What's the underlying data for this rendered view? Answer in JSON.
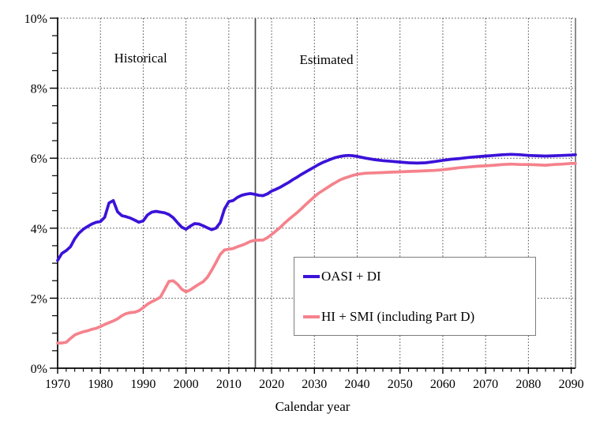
{
  "chart_data": {
    "type": "line",
    "title": "",
    "xlabel": "Calendar year",
    "ylabel": "",
    "xlim": [
      1970,
      2091
    ],
    "ylim": [
      0,
      10
    ],
    "x_major_ticks": [
      1970,
      1980,
      1990,
      2000,
      2010,
      2020,
      2030,
      2040,
      2050,
      2060,
      2070,
      2080,
      2090
    ],
    "x_minor_step": 2,
    "y_major_ticks": [
      0,
      2,
      4,
      6,
      8,
      10
    ],
    "y_minor_step": 0.5,
    "y_tick_suffix": "%",
    "grid": "dotted gridlines at every major tick, both axes",
    "legend_position": "lower right",
    "divider_year": 2016.2,
    "annotations": [
      {
        "text": "Historical",
        "year": 1989.4,
        "value": 8.85
      },
      {
        "text": "Estimated",
        "year": 2032.8,
        "value": 8.8
      }
    ],
    "series": [
      {
        "id": "oasi-di",
        "name": "OASI + DI",
        "color": "#3b12d9",
        "points": [
          [
            1970,
            3.08
          ],
          [
            1971,
            3.28
          ],
          [
            1972,
            3.36
          ],
          [
            1973,
            3.47
          ],
          [
            1974,
            3.7
          ],
          [
            1975,
            3.86
          ],
          [
            1976,
            3.97
          ],
          [
            1977,
            4.05
          ],
          [
            1978,
            4.12
          ],
          [
            1979,
            4.17
          ],
          [
            1980,
            4.19
          ],
          [
            1981,
            4.31
          ],
          [
            1982,
            4.72
          ],
          [
            1983,
            4.79
          ],
          [
            1984,
            4.47
          ],
          [
            1985,
            4.36
          ],
          [
            1986,
            4.33
          ],
          [
            1987,
            4.29
          ],
          [
            1988,
            4.23
          ],
          [
            1989,
            4.17
          ],
          [
            1990,
            4.21
          ],
          [
            1991,
            4.38
          ],
          [
            1992,
            4.46
          ],
          [
            1993,
            4.48
          ],
          [
            1994,
            4.46
          ],
          [
            1995,
            4.44
          ],
          [
            1996,
            4.39
          ],
          [
            1997,
            4.3
          ],
          [
            1998,
            4.16
          ],
          [
            1999,
            4.03
          ],
          [
            2000,
            3.97
          ],
          [
            2001,
            4.06
          ],
          [
            2002,
            4.13
          ],
          [
            2003,
            4.12
          ],
          [
            2004,
            4.07
          ],
          [
            2005,
            4.01
          ],
          [
            2006,
            3.96
          ],
          [
            2007,
            4.0
          ],
          [
            2008,
            4.16
          ],
          [
            2009,
            4.55
          ],
          [
            2010,
            4.76
          ],
          [
            2011,
            4.79
          ],
          [
            2012,
            4.88
          ],
          [
            2013,
            4.94
          ],
          [
            2014,
            4.97
          ],
          [
            2015,
            4.99
          ],
          [
            2016,
            4.97
          ],
          [
            2017,
            4.94
          ],
          [
            2018,
            4.93
          ],
          [
            2019,
            4.98
          ],
          [
            2020,
            5.06
          ],
          [
            2021,
            5.11
          ],
          [
            2022,
            5.17
          ],
          [
            2023,
            5.24
          ],
          [
            2024,
            5.31
          ],
          [
            2025,
            5.39
          ],
          [
            2026,
            5.46
          ],
          [
            2027,
            5.54
          ],
          [
            2028,
            5.61
          ],
          [
            2029,
            5.68
          ],
          [
            2030,
            5.75
          ],
          [
            2031,
            5.82
          ],
          [
            2032,
            5.88
          ],
          [
            2033,
            5.93
          ],
          [
            2034,
            5.98
          ],
          [
            2035,
            6.02
          ],
          [
            2036,
            6.05
          ],
          [
            2037,
            6.07
          ],
          [
            2038,
            6.08
          ],
          [
            2039,
            6.07
          ],
          [
            2040,
            6.05
          ],
          [
            2042,
            6.0
          ],
          [
            2044,
            5.96
          ],
          [
            2046,
            5.93
          ],
          [
            2048,
            5.91
          ],
          [
            2050,
            5.89
          ],
          [
            2052,
            5.87
          ],
          [
            2054,
            5.86
          ],
          [
            2056,
            5.87
          ],
          [
            2058,
            5.9
          ],
          [
            2060,
            5.94
          ],
          [
            2062,
            5.97
          ],
          [
            2064,
            5.99
          ],
          [
            2066,
            6.02
          ],
          [
            2068,
            6.04
          ],
          [
            2070,
            6.06
          ],
          [
            2072,
            6.08
          ],
          [
            2074,
            6.1
          ],
          [
            2076,
            6.11
          ],
          [
            2078,
            6.1
          ],
          [
            2080,
            6.08
          ],
          [
            2082,
            6.07
          ],
          [
            2084,
            6.06
          ],
          [
            2086,
            6.07
          ],
          [
            2088,
            6.08
          ],
          [
            2090,
            6.09
          ],
          [
            2091,
            6.1
          ]
        ]
      },
      {
        "id": "hi-smi",
        "name": "HI + SMI (including Part D)",
        "color": "#f5828c",
        "points": [
          [
            1970,
            0.72
          ],
          [
            1971,
            0.72
          ],
          [
            1972,
            0.74
          ],
          [
            1973,
            0.85
          ],
          [
            1974,
            0.95
          ],
          [
            1975,
            1.0
          ],
          [
            1976,
            1.04
          ],
          [
            1977,
            1.07
          ],
          [
            1978,
            1.11
          ],
          [
            1979,
            1.14
          ],
          [
            1980,
            1.19
          ],
          [
            1981,
            1.25
          ],
          [
            1982,
            1.3
          ],
          [
            1983,
            1.35
          ],
          [
            1984,
            1.41
          ],
          [
            1985,
            1.5
          ],
          [
            1986,
            1.56
          ],
          [
            1987,
            1.59
          ],
          [
            1988,
            1.6
          ],
          [
            1989,
            1.64
          ],
          [
            1990,
            1.73
          ],
          [
            1991,
            1.83
          ],
          [
            1992,
            1.9
          ],
          [
            1993,
            1.96
          ],
          [
            1994,
            2.03
          ],
          [
            1995,
            2.25
          ],
          [
            1996,
            2.48
          ],
          [
            1997,
            2.5
          ],
          [
            1998,
            2.4
          ],
          [
            1999,
            2.26
          ],
          [
            2000,
            2.18
          ],
          [
            2001,
            2.24
          ],
          [
            2002,
            2.32
          ],
          [
            2003,
            2.4
          ],
          [
            2004,
            2.47
          ],
          [
            2005,
            2.6
          ],
          [
            2006,
            2.8
          ],
          [
            2007,
            3.02
          ],
          [
            2008,
            3.25
          ],
          [
            2009,
            3.38
          ],
          [
            2010,
            3.4
          ],
          [
            2011,
            3.42
          ],
          [
            2012,
            3.47
          ],
          [
            2013,
            3.51
          ],
          [
            2014,
            3.56
          ],
          [
            2015,
            3.62
          ],
          [
            2016,
            3.65
          ],
          [
            2017,
            3.66
          ],
          [
            2018,
            3.66
          ],
          [
            2019,
            3.73
          ],
          [
            2020,
            3.82
          ],
          [
            2021,
            3.92
          ],
          [
            2022,
            4.02
          ],
          [
            2023,
            4.14
          ],
          [
            2024,
            4.25
          ],
          [
            2025,
            4.35
          ],
          [
            2026,
            4.45
          ],
          [
            2027,
            4.56
          ],
          [
            2028,
            4.68
          ],
          [
            2029,
            4.79
          ],
          [
            2030,
            4.9
          ],
          [
            2031,
            5.0
          ],
          [
            2032,
            5.08
          ],
          [
            2033,
            5.16
          ],
          [
            2034,
            5.24
          ],
          [
            2035,
            5.31
          ],
          [
            2036,
            5.38
          ],
          [
            2037,
            5.43
          ],
          [
            2038,
            5.47
          ],
          [
            2039,
            5.51
          ],
          [
            2040,
            5.54
          ],
          [
            2042,
            5.57
          ],
          [
            2044,
            5.58
          ],
          [
            2046,
            5.59
          ],
          [
            2048,
            5.6
          ],
          [
            2050,
            5.61
          ],
          [
            2052,
            5.62
          ],
          [
            2054,
            5.63
          ],
          [
            2056,
            5.64
          ],
          [
            2058,
            5.65
          ],
          [
            2060,
            5.67
          ],
          [
            2062,
            5.7
          ],
          [
            2064,
            5.73
          ],
          [
            2066,
            5.75
          ],
          [
            2068,
            5.77
          ],
          [
            2070,
            5.78
          ],
          [
            2072,
            5.8
          ],
          [
            2074,
            5.82
          ],
          [
            2076,
            5.83
          ],
          [
            2078,
            5.82
          ],
          [
            2080,
            5.82
          ],
          [
            2082,
            5.81
          ],
          [
            2084,
            5.8
          ],
          [
            2086,
            5.82
          ],
          [
            2088,
            5.83
          ],
          [
            2090,
            5.85
          ],
          [
            2091,
            5.85
          ]
        ]
      }
    ]
  },
  "colors": {
    "axis": "#000000",
    "grid": "#444444",
    "divider": "#4a4a4a",
    "right_border": "#666666",
    "legend_border": "#7d7d7d"
  }
}
